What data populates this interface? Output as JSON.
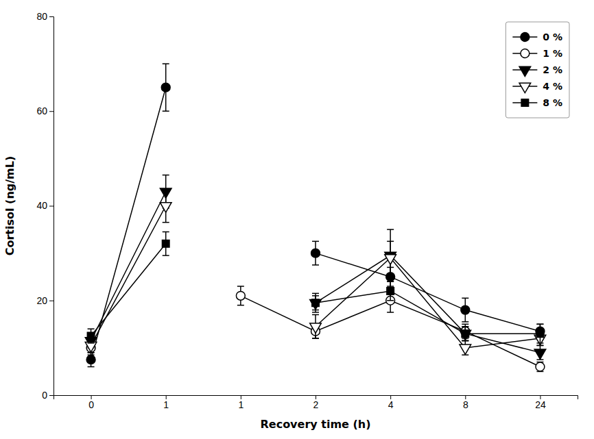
{
  "chart_data": {
    "type": "line",
    "xlabel": "Recovery time (h)",
    "ylabel": "Cortisol (ng/mL)",
    "categories": [
      "0",
      "1",
      "1",
      "2",
      "4",
      "8",
      "24"
    ],
    "ylim": [
      0,
      80
    ],
    "yticks": [
      0,
      20,
      40,
      60,
      80
    ],
    "grid": false,
    "legend": "upper right",
    "series": [
      {
        "name": "0 %",
        "color": "black",
        "marker": "circle",
        "values": [
          7.5,
          65.0,
          null,
          30.0,
          25.0,
          18.0,
          13.5
        ],
        "errors": [
          1.5,
          5.0,
          null,
          2.5,
          2.0,
          2.5,
          1.5
        ]
      },
      {
        "name": "1 %",
        "color": "black",
        "marker": "circle-open",
        "values": [
          10.0,
          null,
          21.0,
          13.5,
          20.0,
          13.5,
          6.0
        ],
        "errors": [
          1.5,
          null,
          2.0,
          1.5,
          2.5,
          1.5,
          1.0
        ]
      },
      {
        "name": "2 %",
        "color": "black",
        "marker": "triangle-down",
        "values": [
          11.5,
          43.0,
          null,
          19.5,
          29.5,
          13.0,
          9.0
        ],
        "errors": [
          1.5,
          3.5,
          null,
          1.5,
          5.5,
          1.5,
          1.5
        ]
      },
      {
        "name": "4 %",
        "color": "black",
        "marker": "triangle-down-open",
        "values": [
          10.5,
          40.0,
          null,
          14.5,
          29.0,
          10.0,
          12.0
        ],
        "errors": [
          1.5,
          3.5,
          null,
          2.5,
          3.5,
          1.5,
          1.5
        ]
      },
      {
        "name": "8 %",
        "color": "black",
        "marker": "square",
        "values": [
          12.5,
          32.0,
          null,
          19.5,
          22.0,
          13.0,
          13.0
        ],
        "errors": [
          1.5,
          2.5,
          null,
          2.0,
          2.0,
          1.5,
          2.0
        ]
      }
    ]
  }
}
